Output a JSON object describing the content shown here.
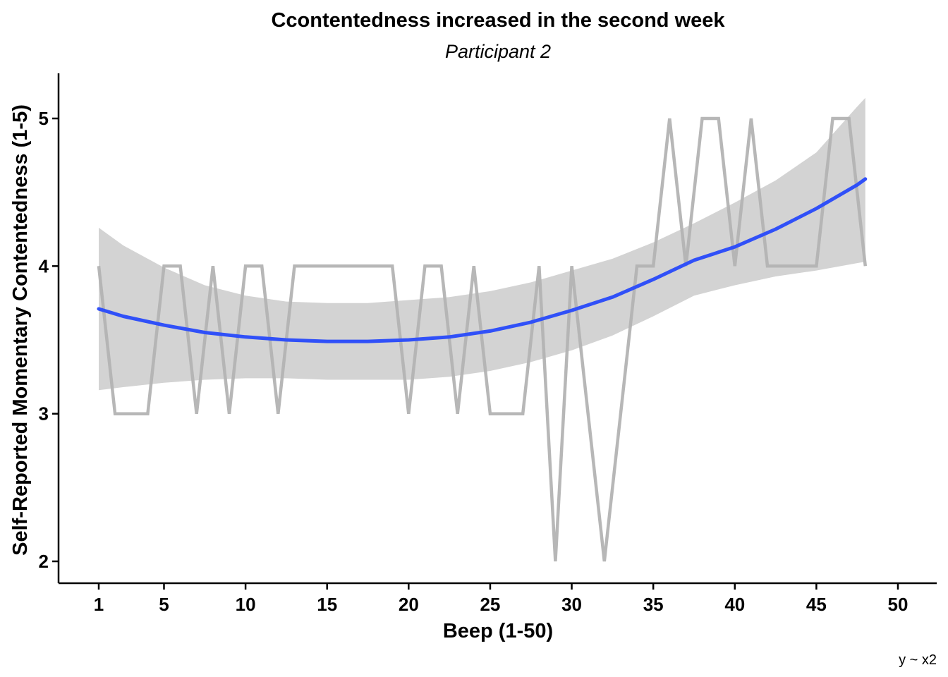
{
  "chart_data": {
    "type": "line",
    "title": "Ccontentedness increased in the second week",
    "subtitle": "Participant 2",
    "xlabel": "Beep (1-50)",
    "ylabel": "Self-Reported Momentary Contentedness (1-5)",
    "caption": "y ~ x2",
    "xlim": [
      1,
      50
    ],
    "ylim": [
      1.85,
      5.3
    ],
    "x_ticks": [
      1,
      5,
      10,
      15,
      20,
      25,
      30,
      35,
      40,
      45,
      50
    ],
    "y_ticks": [
      2,
      3,
      4,
      5
    ],
    "grid": false,
    "series": [
      {
        "role": "raw",
        "color": "#b3b3b3",
        "x": [
          1,
          2,
          3,
          4,
          5,
          6,
          7,
          8,
          9,
          10,
          11,
          12,
          13,
          14,
          15,
          16,
          17,
          18,
          19,
          20,
          21,
          22,
          23,
          24,
          25,
          26,
          27,
          28,
          29,
          30,
          31,
          32,
          33,
          34,
          35,
          36,
          37,
          38,
          39,
          40,
          41,
          42,
          43,
          44,
          45,
          46,
          47,
          48
        ],
        "y": [
          4,
          3,
          3,
          3,
          4,
          4,
          3,
          4,
          3,
          4,
          4,
          3,
          4,
          4,
          4,
          4,
          4,
          4,
          4,
          3,
          4,
          4,
          3,
          4,
          3,
          3,
          3,
          4,
          2,
          4,
          3,
          2,
          3,
          4,
          4,
          5,
          4,
          5,
          5,
          4,
          5,
          4,
          4,
          4,
          4,
          5,
          5,
          4
        ]
      },
      {
        "role": "quadratic-fit",
        "color": "#3050f8",
        "band_color": "#d3d3d3",
        "x": [
          1,
          2.5,
          5,
          7.5,
          10,
          12.5,
          15,
          17.5,
          20,
          22.5,
          25,
          27.5,
          30,
          32.5,
          35,
          37.5,
          40,
          42.5,
          45,
          47.5,
          48
        ],
        "y": [
          3.71,
          3.66,
          3.6,
          3.55,
          3.52,
          3.5,
          3.49,
          3.49,
          3.5,
          3.52,
          3.56,
          3.62,
          3.7,
          3.79,
          3.91,
          4.04,
          4.13,
          4.25,
          4.39,
          4.55,
          4.59
        ],
        "lower": [
          3.16,
          3.18,
          3.21,
          3.23,
          3.24,
          3.24,
          3.23,
          3.23,
          3.23,
          3.25,
          3.29,
          3.35,
          3.43,
          3.53,
          3.66,
          3.8,
          3.87,
          3.93,
          3.97,
          4.02,
          4.03
        ],
        "upper": [
          4.26,
          4.14,
          3.99,
          3.87,
          3.8,
          3.76,
          3.75,
          3.75,
          3.77,
          3.79,
          3.83,
          3.89,
          3.97,
          4.05,
          4.16,
          4.29,
          4.43,
          4.58,
          4.77,
          5.08,
          5.14
        ]
      }
    ]
  }
}
